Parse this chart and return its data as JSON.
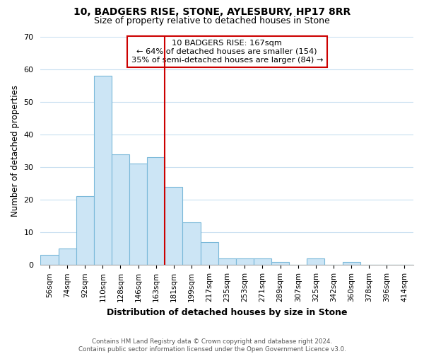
{
  "title_line1": "10, BADGERS RISE, STONE, AYLESBURY, HP17 8RR",
  "title_line2": "Size of property relative to detached houses in Stone",
  "xlabel": "Distribution of detached houses by size in Stone",
  "ylabel": "Number of detached properties",
  "bar_labels": [
    "56sqm",
    "74sqm",
    "92sqm",
    "110sqm",
    "128sqm",
    "146sqm",
    "163sqm",
    "181sqm",
    "199sqm",
    "217sqm",
    "235sqm",
    "253sqm",
    "271sqm",
    "289sqm",
    "307sqm",
    "325sqm",
    "342sqm",
    "360sqm",
    "378sqm",
    "396sqm",
    "414sqm"
  ],
  "bar_values": [
    3,
    5,
    21,
    58,
    34,
    31,
    33,
    24,
    13,
    7,
    2,
    2,
    2,
    1,
    0,
    2,
    0,
    1,
    0,
    0,
    0
  ],
  "bar_color": "#cce5f5",
  "bar_edge_color": "#7ab8d9",
  "vline_color": "#cc0000",
  "annotation_line1": "10 BADGERS RISE: 167sqm",
  "annotation_line2": "← 64% of detached houses are smaller (154)",
  "annotation_line3": "35% of semi-detached houses are larger (84) →",
  "annotation_box_color": "#cc0000",
  "annotation_box_bg": "#ffffff",
  "ylim": [
    0,
    70
  ],
  "yticks": [
    0,
    10,
    20,
    30,
    40,
    50,
    60,
    70
  ],
  "footer_line1": "Contains HM Land Registry data © Crown copyright and database right 2024.",
  "footer_line2": "Contains public sector information licensed under the Open Government Licence v3.0.",
  "background_color": "#ffffff",
  "grid_color": "#c8dff0"
}
